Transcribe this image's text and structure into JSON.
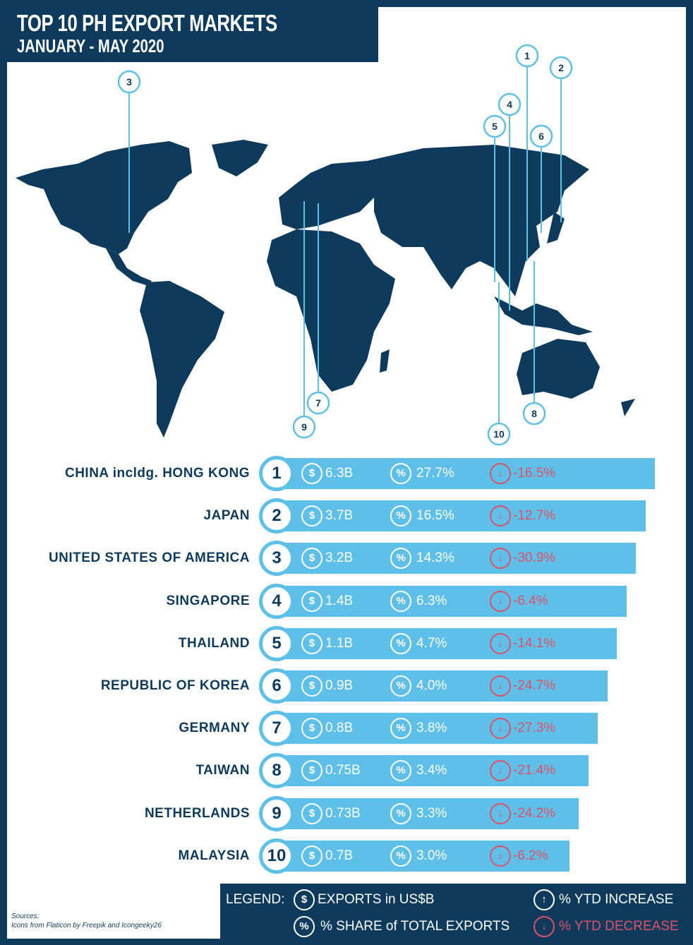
{
  "title": "TOP 10 PH EXPORT MARKETS",
  "subtitle": "JANUARY - MAY 2020",
  "colors": {
    "navy": "#0e3b5c",
    "bar": "#5ec0e8",
    "decrease": "#e0506a"
  },
  "chart_data": {
    "type": "bar",
    "title": "TOP 10 PH EXPORT MARKETS, JANUARY - MAY 2020",
    "categories": [
      "CHINA incldg. HONG KONG",
      "JAPAN",
      "UNITED STATES OF AMERICA",
      "SINGAPORE",
      "THAILAND",
      "REPUBLIC OF KOREA",
      "GERMANY",
      "TAIWAN",
      "NETHERLANDS",
      "MALAYSIA"
    ],
    "rows": [
      {
        "rank": "1",
        "country": "CHINA incldg. HONG KONG",
        "exports": "6.3B",
        "share": "27.7%",
        "ytd": "-16.5%"
      },
      {
        "rank": "2",
        "country": "JAPAN",
        "exports": "3.7B",
        "share": "16.5%",
        "ytd": "-12.7%"
      },
      {
        "rank": "3",
        "country": "UNITED STATES OF AMERICA",
        "exports": "3.2B",
        "share": "14.3%",
        "ytd": "-30.9%"
      },
      {
        "rank": "4",
        "country": "SINGAPORE",
        "exports": "1.4B",
        "share": "6.3%",
        "ytd": "-6.4%"
      },
      {
        "rank": "5",
        "country": "THAILAND",
        "exports": "1.1B",
        "share": "4.7%",
        "ytd": "-14.1%"
      },
      {
        "rank": "6",
        "country": "REPUBLIC OF KOREA",
        "exports": "0.9B",
        "share": "4.0%",
        "ytd": "-24.7%"
      },
      {
        "rank": "7",
        "country": "GERMANY",
        "exports": "0.8B",
        "share": "3.8%",
        "ytd": "-27.3%"
      },
      {
        "rank": "8",
        "country": "TAIWAN",
        "exports": "0.75B",
        "share": "3.4%",
        "ytd": "-21.4%"
      },
      {
        "rank": "9",
        "country": "NETHERLANDS",
        "exports": "0.73B",
        "share": "3.3%",
        "ytd": "-24.2%"
      },
      {
        "rank": "10",
        "country": "MALAYSIA",
        "exports": "0.7B",
        "share": "3.0%",
        "ytd": "-6.2%"
      }
    ]
  },
  "map_pins": [
    "1",
    "2",
    "3",
    "4",
    "5",
    "6",
    "7",
    "8",
    "9",
    "10"
  ],
  "icons": {
    "dollar": "$",
    "percent": "%"
  },
  "legend": {
    "label": "LEGEND:",
    "exports": "EXPORTS in US$B",
    "share": "% SHARE of TOTAL EXPORTS",
    "increase": "% YTD INCREASE",
    "decrease": "% YTD DECREASE"
  },
  "sources": {
    "label": "Sources:",
    "text": "Icons from Flaticon by Freepik and Icongeeky26"
  }
}
